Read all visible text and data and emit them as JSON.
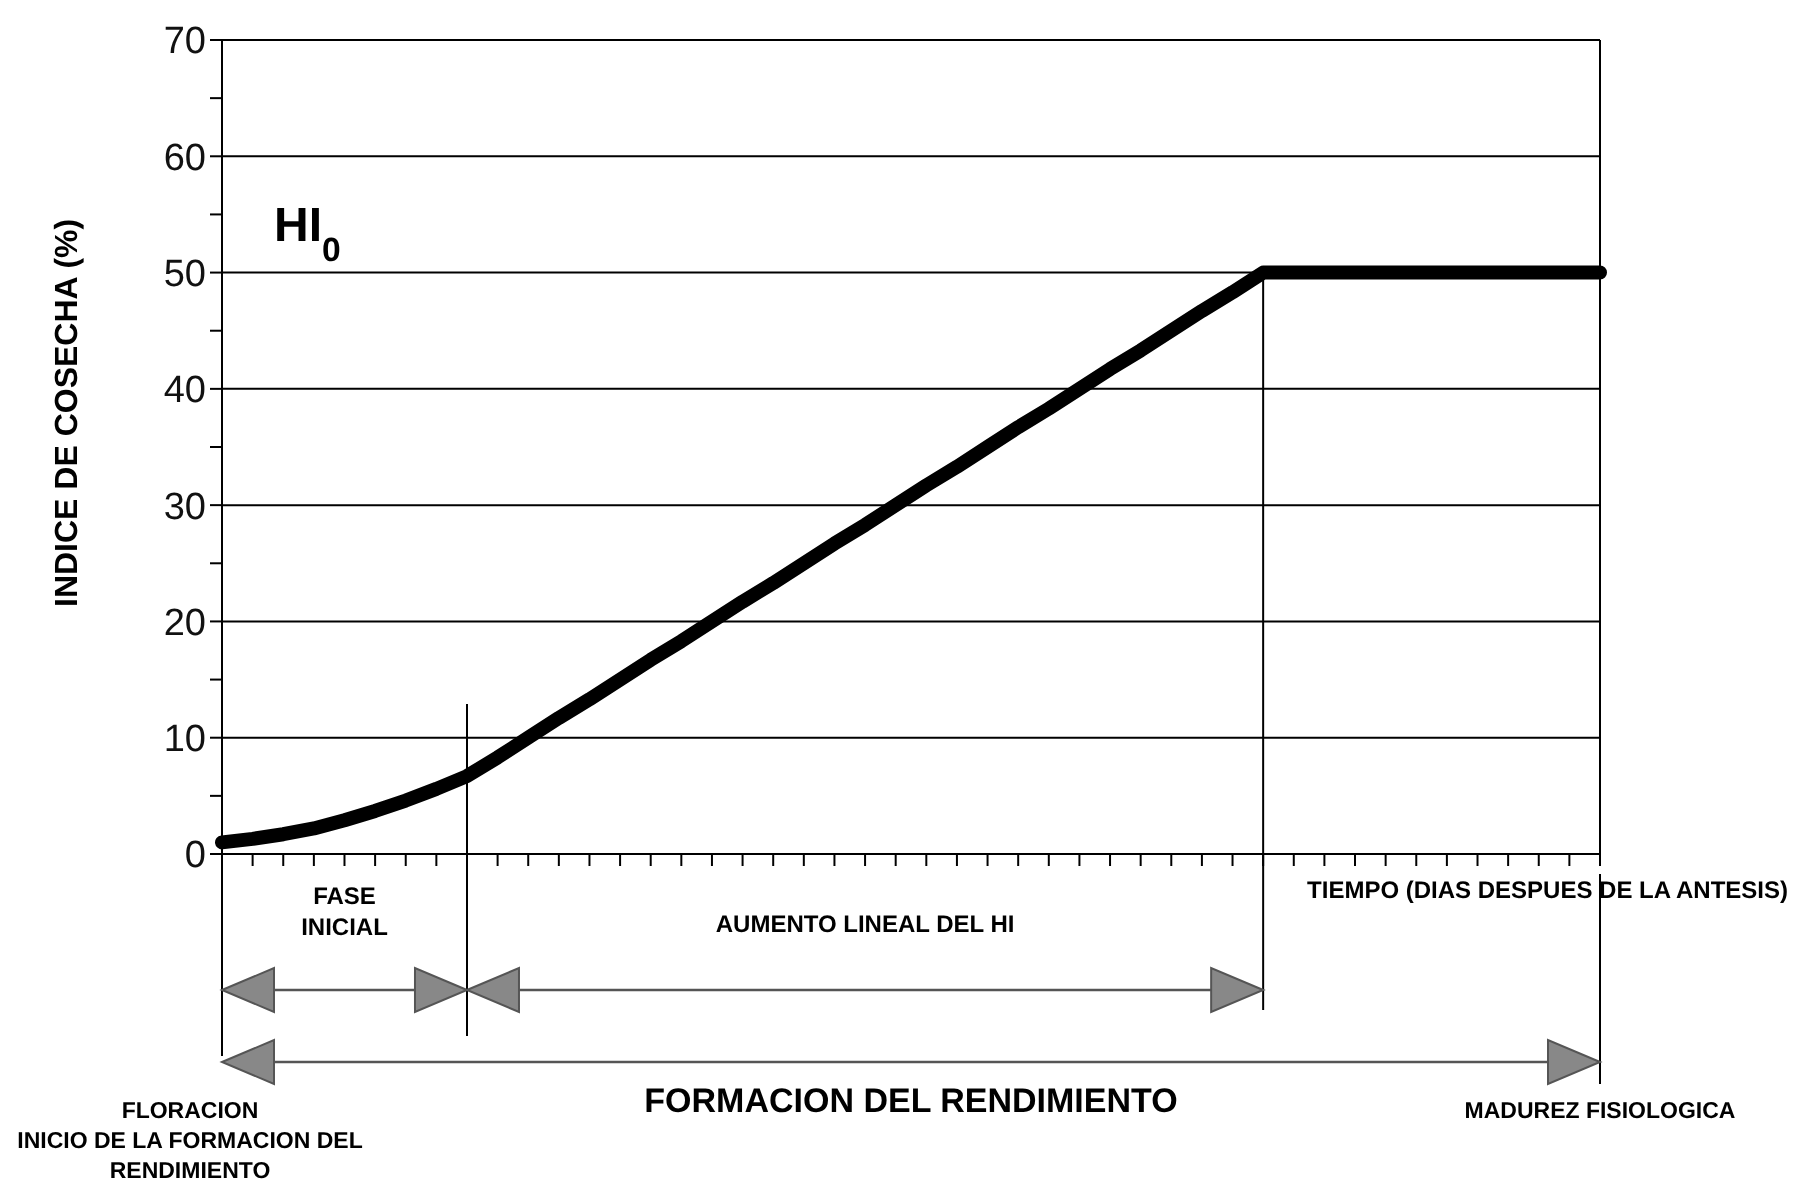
{
  "chart_data": {
    "type": "line",
    "ylabel": "INDICE DE COSECHA (%)",
    "xlabel": "TIEMPO (DIAS DESPUES DE LA ANTESIS)",
    "categories": [
      null,
      null,
      null,
      null,
      null,
      null,
      null,
      null,
      null,
      null,
      null,
      null,
      null,
      null,
      null,
      null,
      null,
      null,
      null,
      null,
      null,
      null,
      null,
      null,
      null,
      null,
      null,
      null,
      null,
      null,
      null,
      null,
      null,
      null,
      null,
      null,
      null,
      null,
      null,
      null,
      null,
      null,
      null,
      null,
      null,
      null
    ],
    "series": [
      {
        "color": "#000000",
        "values": [
          1,
          1.3,
          1.7,
          2.2,
          2.9,
          3.7,
          4.6,
          5.6,
          6.7,
          8.3,
          10,
          11.7,
          13.3,
          15,
          16.7,
          18.3,
          20,
          21.7,
          23.3,
          25,
          26.7,
          28.3,
          30,
          31.7,
          33.3,
          35,
          36.7,
          38.3,
          40,
          41.7,
          43.3,
          45,
          46.7,
          48.3,
          50,
          50,
          50,
          50,
          50,
          50,
          50,
          50,
          50,
          50,
          50,
          50
        ]
      }
    ],
    "ylim": [
      0,
      70
    ],
    "yticks": [
      0,
      {
        "value": 5,
        "label": null
      },
      10,
      {
        "value": 15,
        "label": null
      },
      20,
      {
        "value": 25,
        "label": null
      },
      30,
      {
        "value": 35,
        "label": null
      },
      40,
      {
        "value": 45,
        "label": null
      },
      50,
      {
        "value": 55,
        "label": null
      },
      60,
      {
        "value": 65,
        "label": null
      },
      70
    ],
    "grid": "y",
    "annotations": [
      "HI$_{0}$",
      "FASE INICIAL",
      "AUMENTO LINEAL DEL HI",
      "FORMACION DEL RENDIMIENTO",
      "FLORACION",
      "INICIO DE LA FORMACION DEL RENDIMIENTO",
      "MADUREZ FISIOLOGICA"
    ]
  }
}
